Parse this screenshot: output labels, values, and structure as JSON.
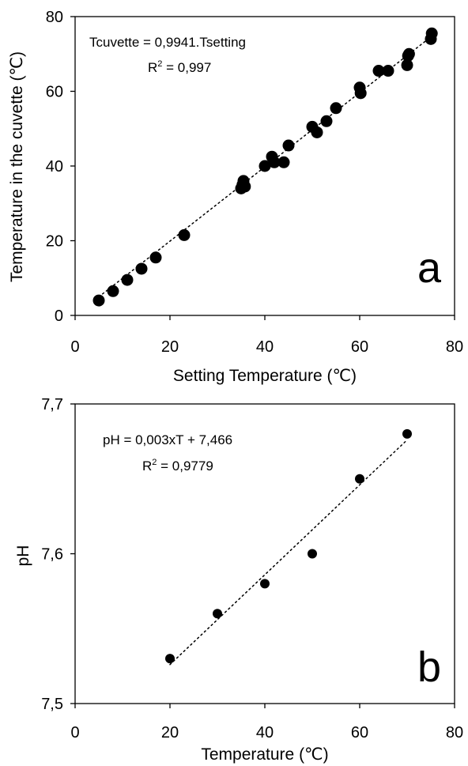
{
  "chart_data": [
    {
      "type": "scatter",
      "panel_label": "a",
      "xlabel": "Setting Temperature (℃)",
      "ylabel": "Temperature in the cuvette (℃)",
      "xlim": [
        0,
        80
      ],
      "ylim": [
        0,
        80
      ],
      "x_ticks": [
        "0",
        "20",
        "40",
        "60",
        "80"
      ],
      "y_ticks": [
        "0",
        "20",
        "40",
        "60",
        "80"
      ],
      "grid": false,
      "annotation": {
        "equation": "Tcuvette = 0,9941.Tsetting",
        "r2_prefix": "R",
        "r2_sup": "2",
        "r2_value": " = 0,997"
      },
      "trendline": {
        "style": "dotted",
        "slope": 0.9941,
        "intercept": 0,
        "x_range": [
          5,
          75
        ]
      },
      "points": [
        [
          5,
          4
        ],
        [
          8,
          6.5
        ],
        [
          11,
          9.5
        ],
        [
          14,
          12.5
        ],
        [
          17,
          15.5
        ],
        [
          23,
          21.5
        ],
        [
          35,
          34
        ],
        [
          35.3,
          35
        ],
        [
          35.5,
          36
        ],
        [
          35.8,
          34.5
        ],
        [
          40,
          40
        ],
        [
          41.5,
          42.5
        ],
        [
          42,
          41
        ],
        [
          44,
          41
        ],
        [
          45,
          45.5
        ],
        [
          50,
          50.5
        ],
        [
          51,
          49
        ],
        [
          53,
          52
        ],
        [
          55,
          55.5
        ],
        [
          60,
          61
        ],
        [
          60.2,
          59.5
        ],
        [
          64,
          65.5
        ],
        [
          66,
          65.5
        ],
        [
          70,
          67
        ],
        [
          70.2,
          69.5
        ],
        [
          70.4,
          70
        ],
        [
          75,
          74
        ],
        [
          75.2,
          75.5
        ]
      ]
    },
    {
      "type": "scatter",
      "panel_label": "b",
      "xlabel": "Temperature (℃)",
      "ylabel": "pH",
      "xlim": [
        0,
        80
      ],
      "ylim": [
        7.5,
        7.7
      ],
      "x_ticks": [
        "0",
        "20",
        "40",
        "60",
        "80"
      ],
      "y_ticks": [
        "7,5",
        "7,6",
        "7,7"
      ],
      "grid": false,
      "annotation": {
        "equation": "pH = 0,003xT + 7,466",
        "r2_prefix": "R",
        "r2_sup": "2",
        "r2_value": " = 0,9779"
      },
      "trendline": {
        "style": "dotted",
        "slope": 0.003,
        "intercept": 7.466,
        "x_range": [
          20,
          70
        ]
      },
      "points": [
        [
          20,
          7.53
        ],
        [
          30,
          7.56
        ],
        [
          40,
          7.58
        ],
        [
          50,
          7.6
        ],
        [
          60,
          7.65
        ],
        [
          70,
          7.68
        ]
      ]
    }
  ]
}
